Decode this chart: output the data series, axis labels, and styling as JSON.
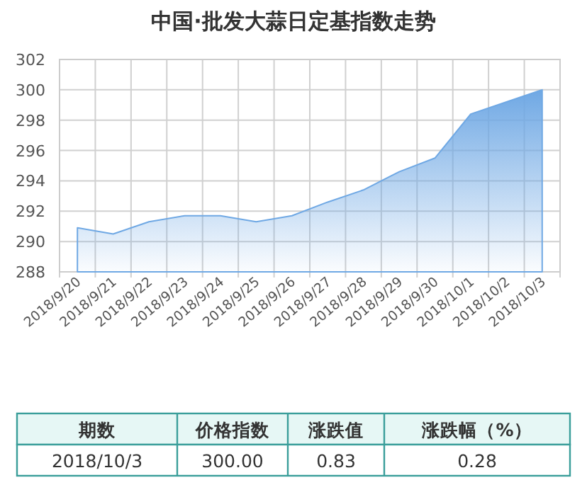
{
  "chart_data": {
    "type": "area",
    "title": "中国·批发大蒜日定基指数走势",
    "categories": [
      "2018/9/20",
      "2018/9/21",
      "2018/9/22",
      "2018/9/23",
      "2018/9/24",
      "2018/9/25",
      "2018/9/26",
      "2018/9/27",
      "2018/9/28",
      "2018/9/29",
      "2018/9/30",
      "2018/10/1",
      "2018/10/2",
      "2018/10/3"
    ],
    "series": [
      {
        "color": "#6fa8e4",
        "values": [
          290.9,
          290.5,
          291.3,
          291.7,
          291.7,
          291.3,
          291.7,
          292.6,
          293.4,
          294.6,
          295.5,
          298.4,
          299.2,
          300.0
        ]
      }
    ],
    "ylim": [
      288,
      302
    ],
    "yticks": [
      288,
      290,
      292,
      294,
      296,
      298,
      300,
      302
    ],
    "grid": true,
    "annotations": [
      "期数",
      "价格指数",
      "涨跌值",
      "涨跌幅（%）",
      "2018/10/3",
      "300.00",
      "0.83",
      "0.28"
    ]
  }
}
